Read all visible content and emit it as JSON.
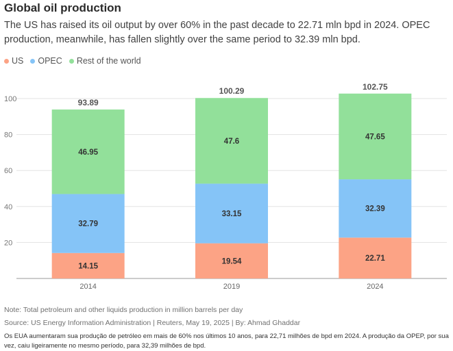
{
  "header": {
    "title": "Global oil production",
    "subtitle": "The US has raised its oil output by over 60% in the past decade to 22.71 mln bpd in 2024. OPEC production, meanwhile, has fallen slightly over the same period to 32.39 mln bpd."
  },
  "footer": {
    "note": "Note: Total petroleum and other liquids production in million barrels per day",
    "source": "Source: US Energy Information Administration | Reuters, May 19, 2025 | By: Ahmad Ghaddar",
    "translation": "Os EUA aumentaram sua produção de petróleo em mais de 60% nos últimos 10 anos, para 22,71 milhões de bpd em 2024. A produção da OPEP, por sua vez, caiu ligeiramente no mesmo período, para 32,39 milhões de bpd."
  },
  "chart_data": {
    "type": "bar",
    "stacked": true,
    "categories": [
      "2014",
      "2019",
      "2024"
    ],
    "series": [
      {
        "name": "US",
        "color": "#fca385",
        "values": [
          14.15,
          19.54,
          22.71
        ]
      },
      {
        "name": "OPEC",
        "color": "#85c4f7",
        "values": [
          32.79,
          33.15,
          32.39
        ]
      },
      {
        "name": "Rest of the world",
        "color": "#92e09a",
        "values": [
          46.95,
          47.6,
          47.65
        ]
      }
    ],
    "totals": [
      "93.89",
      "100.29",
      "102.75"
    ],
    "segment_labels": [
      [
        "14.15",
        "19.54",
        "22.71"
      ],
      [
        "32.79",
        "33.15",
        "32.39"
      ],
      [
        "46.95",
        "47.6",
        "47.65"
      ]
    ],
    "y_ticks": [
      "20",
      "40",
      "60",
      "80",
      "100"
    ],
    "ylim": [
      0,
      100
    ],
    "grid": true,
    "legend_position": "top-left"
  }
}
